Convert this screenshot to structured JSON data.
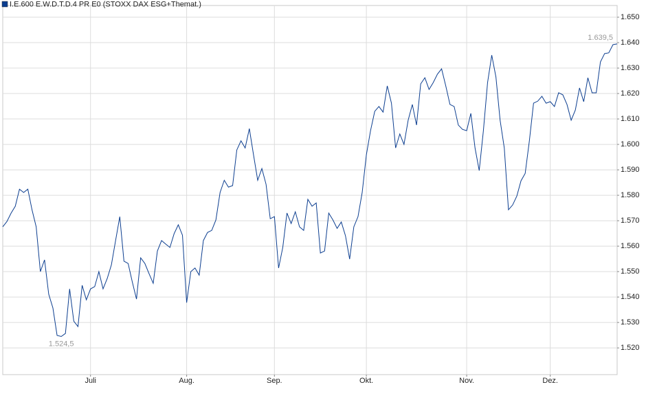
{
  "chart_data": {
    "type": "line",
    "series": [
      {
        "name": "I.E.600 E.W.D.T.D.4 PR E0 (STOXX DAX ESG+Themat.)",
        "color": "#0b3d8f",
        "values": [
          1567.6,
          1569.7,
          1573.0,
          1575.7,
          1582.4,
          1581.1,
          1582.4,
          1574.3,
          1567.6,
          1550,
          1554.6,
          1541.1,
          1535.7,
          1524.9,
          1524.5,
          1525.7,
          1543.2,
          1530.5,
          1528.4,
          1544.6,
          1538.9,
          1543.2,
          1544.1,
          1550,
          1543.2,
          1547.3,
          1552.7,
          1562.2,
          1571.6,
          1554.1,
          1553.2,
          1545.9,
          1539.2,
          1555.4,
          1553.2,
          1549.2,
          1545.4,
          1558.1,
          1562.2,
          1560.8,
          1559.5,
          1564.9,
          1568.4,
          1564.3,
          1537.8,
          1550,
          1551.4,
          1548.6,
          1562.2,
          1565.4,
          1566.2,
          1570.3,
          1581.1,
          1585.9,
          1583.2,
          1583.8,
          1597.8,
          1601.4,
          1598.6,
          1606.2,
          1595.9,
          1585.9,
          1590.5,
          1584.3,
          1570.8,
          1571.6,
          1551.4,
          1559.5,
          1573.0,
          1568.9,
          1573.5,
          1567.6,
          1566.2,
          1578.4,
          1575.7,
          1577.0,
          1557.3,
          1558.1,
          1573.0,
          1570.3,
          1567.0,
          1569.5,
          1564.1,
          1554.9,
          1567.6,
          1571.6,
          1581.1,
          1595.9,
          1605.4,
          1613.0,
          1614.9,
          1612.7,
          1623.0,
          1616.2,
          1598.6,
          1604.1,
          1600.0,
          1609.5,
          1615.7,
          1607.6,
          1623.8,
          1626.2,
          1621.6,
          1624.3,
          1627.6,
          1629.7,
          1623.0,
          1615.7,
          1614.9,
          1607.6,
          1605.9,
          1605.4,
          1612.2,
          1598.6,
          1589.7,
          1605.4,
          1624.3,
          1635.1,
          1626.5,
          1609.5,
          1598.6,
          1574.3,
          1576.2,
          1579.7,
          1585.7,
          1588.6,
          1601.4,
          1616.2,
          1617.0,
          1618.9,
          1616.2,
          1616.8,
          1614.9,
          1620.3,
          1619.5,
          1615.7,
          1609.5,
          1613.5,
          1622.2,
          1616.8,
          1626.2,
          1620.3,
          1620.3,
          1632.4,
          1635.7,
          1636.0,
          1639.2,
          1639.5
        ]
      }
    ],
    "annotations": [
      {
        "value": 1524.5,
        "label": "1.524,5"
      },
      {
        "value": 1639.5,
        "label": "1.639,5"
      }
    ],
    "xlim": [
      0,
      147
    ],
    "xticks": [
      {
        "value": 21,
        "label": "Juli"
      },
      {
        "value": 44,
        "label": "Aug."
      },
      {
        "value": 65,
        "label": "Sep."
      },
      {
        "value": 87,
        "label": "Okt."
      },
      {
        "value": 111,
        "label": "Nov."
      },
      {
        "value": 131,
        "label": "Dez."
      }
    ],
    "ylim": [
      1509.5,
      1654.6
    ],
    "yticks": [
      {
        "value": 1520,
        "label": "1.520"
      },
      {
        "value": 1530,
        "label": "1.530"
      },
      {
        "value": 1540,
        "label": "1.540"
      },
      {
        "value": 1550,
        "label": "1.550"
      },
      {
        "value": 1560,
        "label": "1.560"
      },
      {
        "value": 1570,
        "label": "1.570"
      },
      {
        "value": 1580,
        "label": "1.580"
      },
      {
        "value": 1590,
        "label": "1.590"
      },
      {
        "value": 1600,
        "label": "1.600"
      },
      {
        "value": 1610,
        "label": "1.610"
      },
      {
        "value": 1620,
        "label": "1.620"
      },
      {
        "value": 1630,
        "label": "1.630"
      },
      {
        "value": 1640,
        "label": "1.640"
      },
      {
        "value": 1650,
        "label": "1.650"
      }
    ],
    "grid": true
  }
}
